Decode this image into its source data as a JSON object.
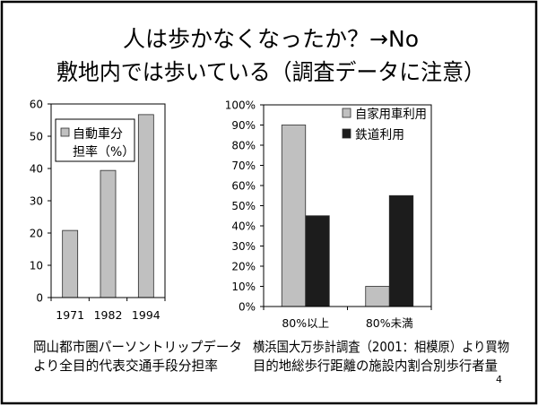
{
  "slide": {
    "title_lines": [
      "人は歩かなくなったか？→No",
      "敷地内では歩いている（調査データに注意）"
    ],
    "page_number": "4"
  },
  "chart_data": [
    {
      "type": "bar",
      "categories": [
        "1971",
        "1982",
        "1994"
      ],
      "series": [
        {
          "name": "自動車分担率（%）",
          "values": [
            20.8,
            39.4,
            56.7
          ],
          "color": "#c0c0c0"
        }
      ],
      "ylim": [
        0,
        60
      ],
      "y_tick_labels": [
        "0",
        "10",
        "20",
        "30",
        "40",
        "50",
        "60"
      ],
      "grid": false,
      "legend": "top-left",
      "source_note": [
        "岡山都市圏パーソントリップデータ",
        "より全目的代表交通手段分担率"
      ]
    },
    {
      "type": "bar",
      "categories": [
        "80%以上",
        "80%未満"
      ],
      "series": [
        {
          "name": "自家用車利用",
          "values": [
            90,
            10
          ],
          "color": "#c0c0c0"
        },
        {
          "name": "鉄道利用",
          "values": [
            45,
            55
          ],
          "color": "#1c1c1c"
        }
      ],
      "ylim": [
        0,
        100
      ],
      "y_tick_labels": [
        "0%",
        "10%",
        "20%",
        "30%",
        "40%",
        "50%",
        "60%",
        "70%",
        "80%",
        "90%",
        "100%"
      ],
      "grid": false,
      "legend": "top-right",
      "source_note": [
        "横浜国大万歩計調査（2001：相模原）より買物",
        "目的地総歩行距離の施設内割合別歩行者量"
      ]
    }
  ]
}
